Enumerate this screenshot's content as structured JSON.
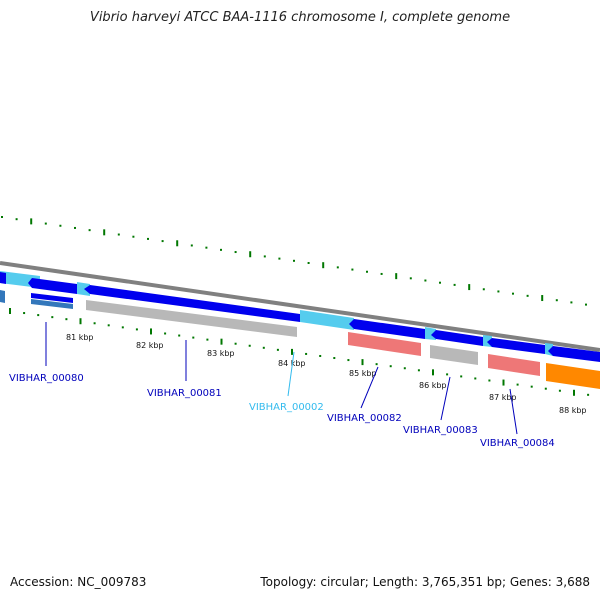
{
  "title": "Vibrio harveyi ATCC BAA-1116 chromosome I, complete genome",
  "footer": {
    "accession": "Accession: NC_009783",
    "summary": "Topology: circular; Length: 3,765,351 bp; Genes: 3,688"
  },
  "colors": {
    "backbone": "#808080",
    "cds": "#0000ee",
    "gene": "#55ccee",
    "grey_feature": "#b8b8b8",
    "pink_feature": "#ee7777",
    "orange_feature": "#ff8800",
    "tick": "#007700",
    "label_dark": "#0000bb",
    "label_light": "#33bbee"
  },
  "ticks": [
    "81 kbp",
    "82 kbp",
    "83 kbp",
    "84 kbp",
    "85 kbp",
    "86 kbp",
    "87 kbp",
    "88 kbp"
  ],
  "genes": [
    {
      "label": "VIBHAR_00080",
      "color_key": "label_dark"
    },
    {
      "label": "VIBHAR_00081",
      "color_key": "label_dark"
    },
    {
      "label": "VIBHAR_00002",
      "color_key": "label_light"
    },
    {
      "label": "VIBHAR_00082",
      "color_key": "label_dark"
    },
    {
      "label": "VIBHAR_00083",
      "color_key": "label_dark"
    },
    {
      "label": "VIBHAR_00084",
      "color_key": "label_dark"
    }
  ]
}
